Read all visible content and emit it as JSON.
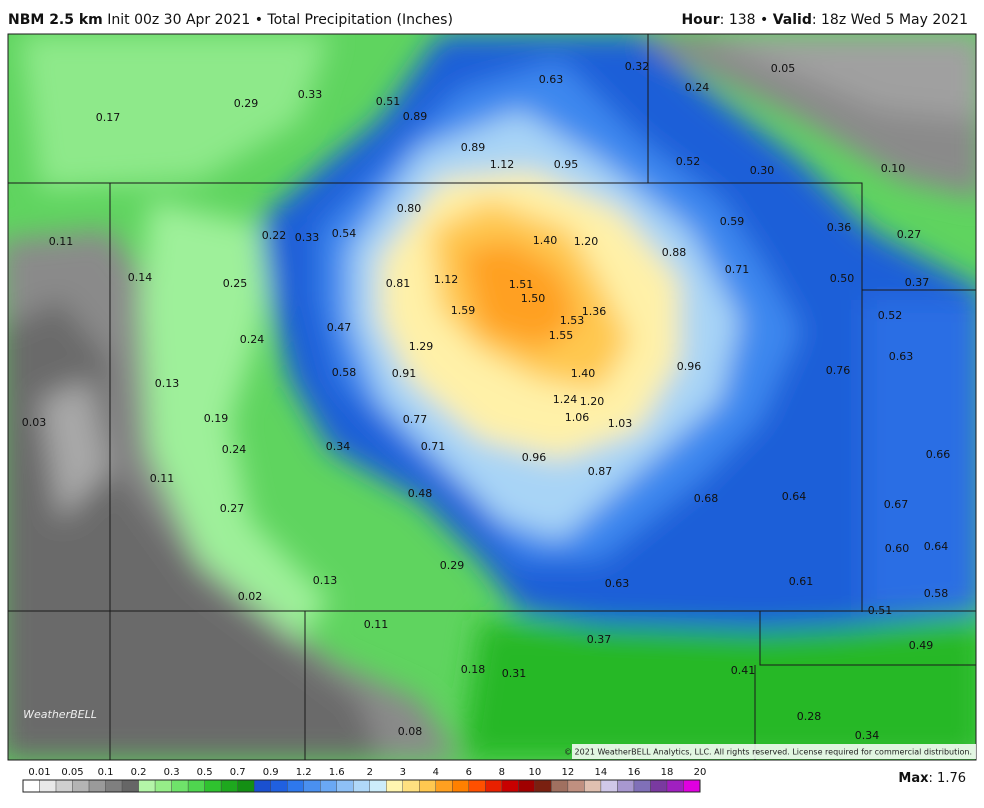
{
  "header": {
    "model": "NBM 2.5 km",
    "init": "Init 00z 30 Apr 2021 • Total Precipitation (Inches)",
    "hour_label": "Hour",
    "hour": ": 138 •",
    "valid_label": "Valid",
    "valid": ": 18z Wed 5 May 2021"
  },
  "map_labels": [
    "0.17",
    "0.29",
    "0.33",
    "0.51",
    "0.89",
    "0.63",
    "0.32",
    "0.05",
    "0.24",
    "0.89",
    "1.12",
    "0.95",
    "0.52",
    "0.30",
    "0.10",
    "0.11",
    "0.22",
    "0.33",
    "0.54",
    "0.80",
    "1.40",
    "1.20",
    "0.88",
    "0.59",
    "0.36",
    "0.27",
    "0.14",
    "0.25",
    "0.81",
    "1.12",
    "1.51",
    "1.50",
    "0.71",
    "0.50",
    "0.37",
    "1.59",
    "1.36",
    "1.53",
    "0.47",
    "1.55",
    "0.52",
    "0.24",
    "1.29",
    "0.63",
    "0.13",
    "0.58",
    "0.91",
    "1.40",
    "0.96",
    "0.76",
    "1.24",
    "1.20",
    "0.03",
    "0.19",
    "0.77",
    "1.06",
    "1.03",
    "0.24",
    "0.34",
    "0.71",
    "0.96",
    "0.87",
    "0.66",
    "0.11",
    "0.48",
    "0.68",
    "0.64",
    "0.67",
    "0.27",
    "0.60",
    "0.64",
    "0.29",
    "0.13",
    "0.63",
    "0.61",
    "0.02",
    "0.58",
    "0.51",
    "0.11",
    "0.37",
    "0.49",
    "0.18",
    "0.31",
    "0.41",
    "0.28",
    "0.34",
    "0.08"
  ],
  "logo": "WeatherBELL",
  "copyright": "© 2021 WeatherBELL Analytics, LLC. All rights reserved. License required for commercial distribution.",
  "legend": {
    "ticks": [
      "0.01",
      "0.05",
      "0.1",
      "0.2",
      "0.3",
      "0.5",
      "0.7",
      "0.9",
      "1.2",
      "1.6",
      "2",
      "3",
      "4",
      "6",
      "8",
      "10",
      "12",
      "14",
      "16",
      "18",
      "20"
    ],
    "colors": [
      "#ffffff",
      "#e8e8e8",
      "#cfcfcf",
      "#b4b4b4",
      "#9a9a9a",
      "#7f7f7f",
      "#666666",
      "#b4f5a8",
      "#96ee88",
      "#6fe36a",
      "#4fd64f",
      "#2fc22f",
      "#1ea81e",
      "#148f14",
      "#1a50d0",
      "#2060e0",
      "#2e78ec",
      "#4a90f0",
      "#6aa8f4",
      "#8ec0f6",
      "#b0d8f8",
      "#ccecfa",
      "#fff5b0",
      "#ffe080",
      "#ffc850",
      "#ffa020",
      "#ff8000",
      "#ff5000",
      "#e82000",
      "#c80000",
      "#a00000",
      "#7a2010",
      "#a07060",
      "#c09080",
      "#e0c0b0",
      "#d0c8e8",
      "#a898d0",
      "#8070b8",
      "#7a3aa0",
      "#a020c0",
      "#e000e0"
    ]
  },
  "max": {
    "label": "Max",
    "value": ": 1.76"
  }
}
